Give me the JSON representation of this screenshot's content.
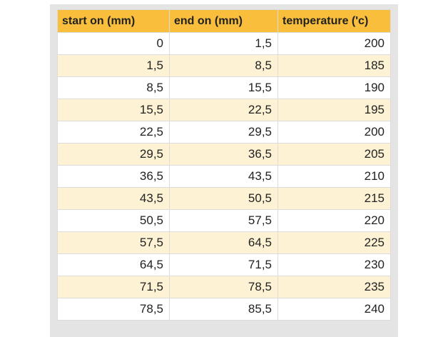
{
  "table": {
    "header": [
      "start on (mm)",
      "end on (mm)",
      "temperature ('c)"
    ],
    "rows": [
      [
        "0",
        "1,5",
        "200"
      ],
      [
        "1,5",
        "8,5",
        "185"
      ],
      [
        "8,5",
        "15,5",
        "190"
      ],
      [
        "15,5",
        "22,5",
        "195"
      ],
      [
        "22,5",
        "29,5",
        "200"
      ],
      [
        "29,5",
        "36,5",
        "205"
      ],
      [
        "36,5",
        "43,5",
        "210"
      ],
      [
        "43,5",
        "50,5",
        "215"
      ],
      [
        "50,5",
        "57,5",
        "220"
      ],
      [
        "57,5",
        "64,5",
        "225"
      ],
      [
        "64,5",
        "71,5",
        "230"
      ],
      [
        "71,5",
        "78,5",
        "235"
      ],
      [
        "78,5",
        "85,5",
        "240"
      ]
    ]
  }
}
